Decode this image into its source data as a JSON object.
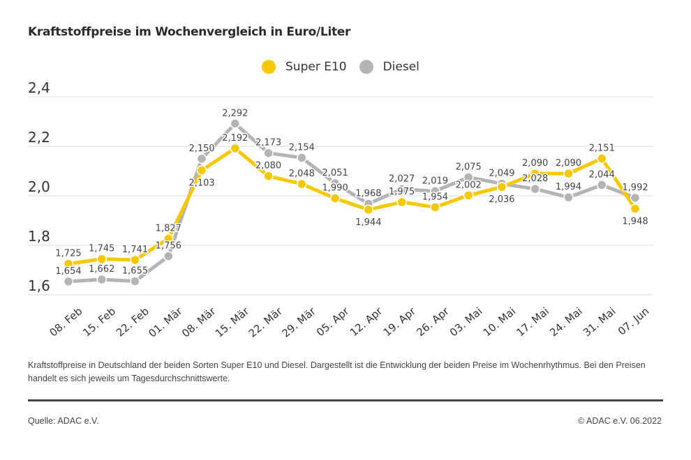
{
  "chart_data": {
    "type": "line",
    "title": "Kraftstoffpreise im Wochenvergleich in Euro/Liter",
    "xlabel": "",
    "ylabel": "Euro/Liter",
    "ylim": [
      1.6,
      2.4
    ],
    "yticks": [
      1.6,
      1.8,
      2.0,
      2.2,
      2.4
    ],
    "ytick_labels": [
      "1,6",
      "1,8",
      "2,0",
      "2,2",
      "2,4"
    ],
    "grid": true,
    "legend_position": "top-center",
    "categories": [
      "08. Feb",
      "15. Feb",
      "22. Feb",
      "01. Mär",
      "08. Mär",
      "15. Mär",
      "22. Mär",
      "29. Mär",
      "05. Apr",
      "12. Apr",
      "19. Apr",
      "26. Apr",
      "03. Mai",
      "10. Mai",
      "17. Mai",
      "24. Mai",
      "31. Mai",
      "07. Jun"
    ],
    "series": [
      {
        "name": "Super E10",
        "color": "#f5c800",
        "values": [
          1.725,
          1.745,
          1.741,
          1.827,
          2.103,
          2.192,
          2.08,
          2.048,
          1.99,
          1.944,
          1.975,
          1.954,
          2.002,
          2.036,
          2.09,
          2.09,
          2.151,
          1.948
        ],
        "labels": [
          "1,725",
          "1,745",
          "1,741",
          "1,827",
          "2,103",
          "2,192",
          "2,080",
          "2,048",
          "1,990",
          "1,944",
          "1,975",
          "1,954",
          "2,002",
          "2,036",
          "2,090",
          "2,090",
          "2,151",
          "1,948"
        ]
      },
      {
        "name": "Diesel",
        "color": "#b4b4b4",
        "values": [
          1.654,
          1.662,
          1.655,
          1.756,
          2.15,
          2.292,
          2.173,
          2.154,
          2.051,
          1.968,
          2.027,
          2.019,
          2.075,
          2.049,
          2.028,
          1.994,
          2.044,
          1.992
        ],
        "labels": [
          "1,654",
          "1,662",
          "1,655",
          "1,756",
          "2,150",
          "2,292",
          "2,173",
          "2,154",
          "2,051",
          "1,968",
          "2,027",
          "2,019",
          "2,075",
          "2,049",
          "2,028",
          "1,994",
          "2,044",
          "1,992"
        ]
      }
    ]
  },
  "legend": {
    "items": [
      {
        "label": "Super E10",
        "color": "#f5c800"
      },
      {
        "label": "Diesel",
        "color": "#b4b4b4"
      }
    ]
  },
  "caption": "Kraftstoffpreise in Deutschland der beiden Sorten Super E10 und Diesel. Dargestellt ist die Entwicklung der beiden Preise im Wochenrhythmus. Bei den Preisen handelt es sich jeweils um Tagesdurchschnittswerte.",
  "footer": {
    "source": "Quelle: ADAC e.V.",
    "copyright": "© ADAC e.V. 06.2022"
  }
}
